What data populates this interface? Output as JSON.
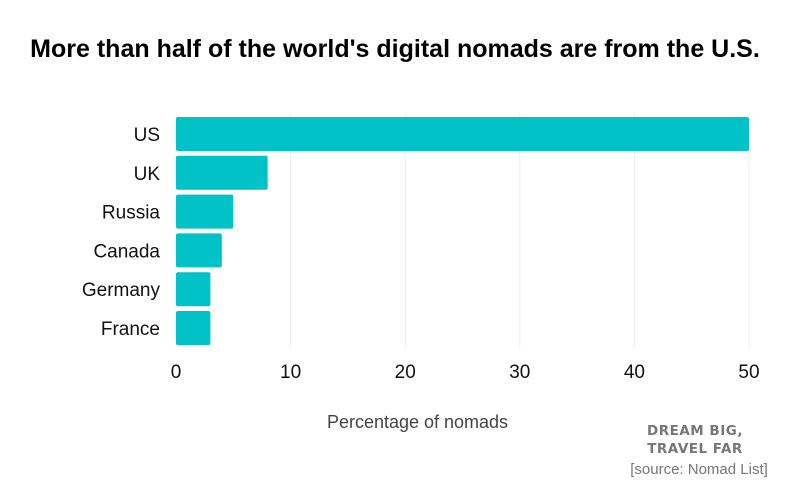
{
  "chart_data": {
    "type": "bar",
    "orientation": "horizontal",
    "title": "More than half of the world's digital nomads are from the U.S.",
    "categories": [
      "US",
      "UK",
      "Russia",
      "Canada",
      "Germany",
      "France"
    ],
    "values": [
      50,
      8,
      5,
      4,
      3,
      3
    ],
    "xlabel": "Percentage of nomads",
    "ylabel": "",
    "xlim": [
      0,
      50
    ],
    "xticks": [
      0,
      10,
      20,
      30,
      40,
      50
    ],
    "grid": true,
    "bar_color": "#00C2C7"
  },
  "brand": {
    "line1": "DREAM BIG,",
    "line2": "TRAVEL FAR"
  },
  "source": "[source: Nomad List]"
}
